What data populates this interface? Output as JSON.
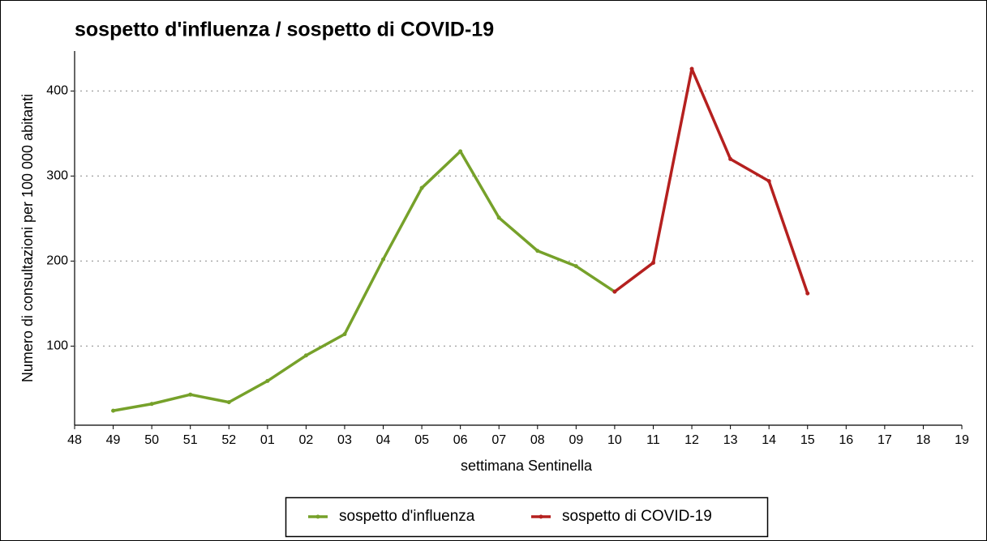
{
  "chart_data": {
    "type": "line",
    "title": "sospetto d'influenza / sospetto di COVID-19",
    "x_label": "settimana Sentinella",
    "y_label": "Numero di consultazioni per 100 000 abitanti",
    "categories": [
      "48",
      "49",
      "50",
      "51",
      "52",
      "01",
      "02",
      "03",
      "04",
      "05",
      "06",
      "07",
      "08",
      "09",
      "10",
      "11",
      "12",
      "13",
      "14",
      "15",
      "16",
      "17",
      "18",
      "19"
    ],
    "series": [
      {
        "name": "sospetto d'influenza",
        "color": "#76a12a",
        "values": [
          null,
          24,
          32,
          43,
          34,
          59,
          89,
          114,
          202,
          286,
          329,
          251,
          212,
          194,
          164,
          null,
          null,
          null,
          null,
          null,
          null,
          null,
          null,
          null
        ]
      },
      {
        "name": "sospetto di COVID-19",
        "color": "#b5201f",
        "values": [
          null,
          null,
          null,
          null,
          null,
          null,
          null,
          null,
          null,
          null,
          null,
          null,
          null,
          null,
          164,
          198,
          426,
          320,
          294,
          162,
          null,
          null,
          null,
          null
        ]
      }
    ],
    "ylim": [
      7,
      447
    ],
    "yticks": [
      100,
      200,
      300,
      400
    ],
    "grid": true,
    "legend": "bottom"
  }
}
